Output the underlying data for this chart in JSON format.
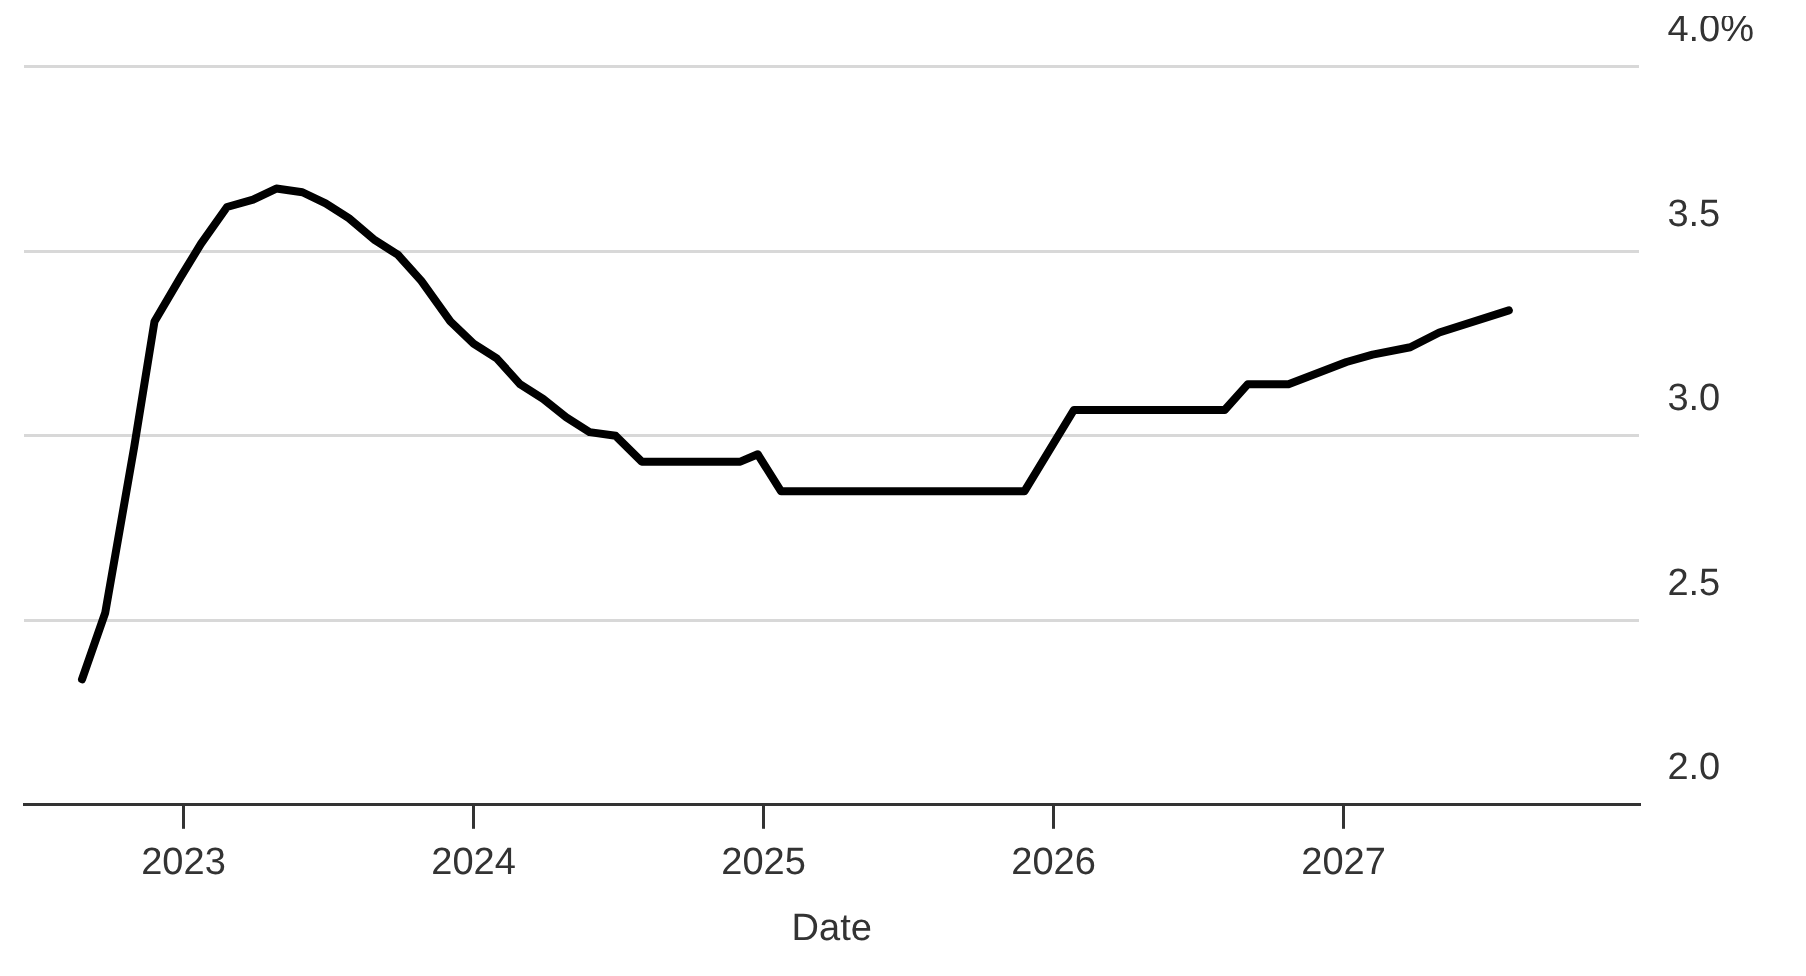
{
  "chart_data": {
    "type": "line",
    "xlabel": "Date",
    "x": [
      2022.65,
      2022.73,
      2022.83,
      2022.9,
      2022.99,
      2023.06,
      2023.15,
      2023.24,
      2023.32,
      2023.41,
      2023.49,
      2023.57,
      2023.66,
      2023.74,
      2023.82,
      2023.92,
      2024.0,
      2024.08,
      2024.16,
      2024.24,
      2024.32,
      2024.4,
      2024.49,
      2024.58,
      2024.92,
      2024.98,
      2025.06,
      2025.9,
      2026.07,
      2026.59,
      2026.67,
      2026.81,
      2027.01,
      2027.1,
      2027.23,
      2027.33,
      2027.57
    ],
    "series": [
      {
        "color": "#000000",
        "values": [
          2.34,
          2.52,
          2.97,
          3.31,
          3.43,
          3.52,
          3.62,
          3.64,
          3.67,
          3.66,
          3.63,
          3.59,
          3.53,
          3.49,
          3.42,
          3.31,
          3.25,
          3.21,
          3.14,
          3.1,
          3.05,
          3.01,
          3.0,
          2.93,
          2.93,
          2.95,
          2.85,
          2.85,
          3.07,
          3.07,
          3.14,
          3.14,
          3.2,
          3.22,
          3.24,
          3.28,
          3.34
        ]
      }
    ],
    "xlim": [
      2022.45,
      2028.02
    ],
    "xticks": [
      2023,
      2024,
      2025,
      2026,
      2027
    ],
    "ylim": [
      2,
      4
    ],
    "yticks": [
      {
        "value": 2,
        "label": "2.0"
      },
      2.5,
      {
        "value": 3,
        "label": "3.0"
      },
      3.5,
      {
        "value": 4,
        "label": "4.0%"
      }
    ],
    "grid": "y",
    "marker": "none",
    "line_style": "solid"
  }
}
